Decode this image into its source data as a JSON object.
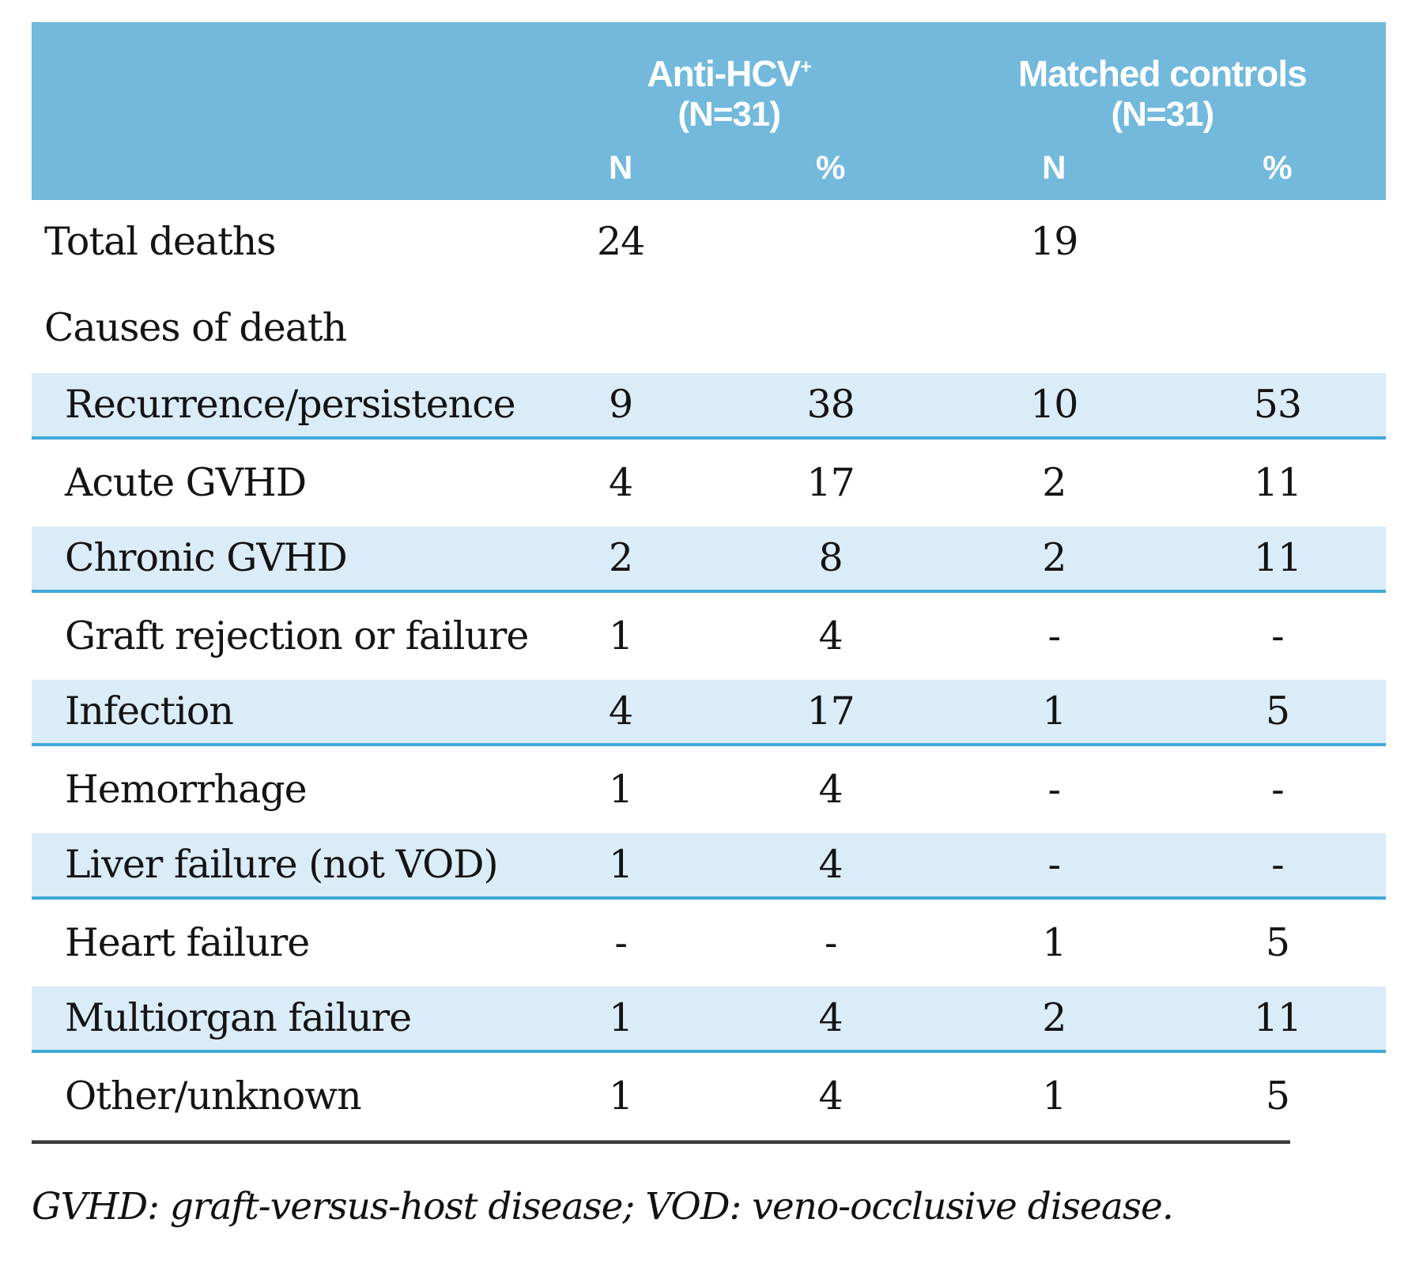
{
  "table": {
    "col_groups": [
      {
        "title": "Anti-HCV",
        "sup": "+",
        "subtitle": "(N=31)"
      },
      {
        "title": "Matched controls",
        "sup": "",
        "subtitle": "(N=31)"
      }
    ],
    "sub_headers": [
      "N",
      "%",
      "N",
      "%"
    ],
    "rows": [
      {
        "label": "Total deaths",
        "indent": false,
        "shaded": false,
        "values": [
          "24",
          "",
          "19",
          ""
        ]
      },
      {
        "label": "Causes of death",
        "indent": false,
        "shaded": false,
        "values": [
          "",
          "",
          "",
          ""
        ]
      },
      {
        "label": "Recurrence/persistence",
        "indent": true,
        "shaded": true,
        "values": [
          "9",
          "38",
          "10",
          "53"
        ]
      },
      {
        "label": "Acute GVHD",
        "indent": true,
        "shaded": false,
        "values": [
          "4",
          "17",
          "2",
          "11"
        ]
      },
      {
        "label": "Chronic GVHD",
        "indent": true,
        "shaded": true,
        "values": [
          "2",
          "8",
          "2",
          "11"
        ]
      },
      {
        "label": "Graft rejection or failure",
        "indent": true,
        "shaded": false,
        "values": [
          "1",
          "4",
          "-",
          "-"
        ]
      },
      {
        "label": "Infection",
        "indent": true,
        "shaded": true,
        "values": [
          "4",
          "17",
          "1",
          "5"
        ]
      },
      {
        "label": "Hemorrhage",
        "indent": true,
        "shaded": false,
        "values": [
          "1",
          "4",
          "-",
          "-"
        ]
      },
      {
        "label": "Liver failure (not VOD)",
        "indent": true,
        "shaded": true,
        "values": [
          "1",
          "4",
          "-",
          "-"
        ]
      },
      {
        "label": "Heart failure",
        "indent": true,
        "shaded": false,
        "values": [
          "-",
          "-",
          "1",
          "5"
        ]
      },
      {
        "label": "Multiorgan failure",
        "indent": true,
        "shaded": true,
        "values": [
          "1",
          "4",
          "2",
          "11"
        ]
      },
      {
        "label": "Other/unknown",
        "indent": true,
        "shaded": false,
        "values": [
          "1",
          "4",
          "1",
          "5"
        ]
      }
    ],
    "footnote": "GVHD: graft-versus-host disease; VOD: veno-occlusive disease."
  },
  "colors": {
    "header_bg": "#72b9dc",
    "header_text": "#ffffff",
    "shaded_row_bg": "#daecf7",
    "shaded_row_border": "#3fa9d8",
    "rule": "#3b3b3b",
    "text": "#141414"
  }
}
